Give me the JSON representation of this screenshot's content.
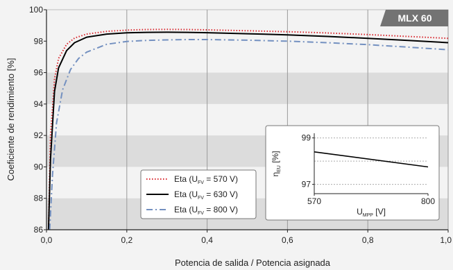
{
  "chart_data": [
    {
      "type": "line",
      "title": "MLX 60",
      "xlabel": "Potencia de salida / Potencia asignada",
      "ylabel": "Coeficiente de rendimiento [%]",
      "xlim": [
        0.0,
        1.0
      ],
      "ylim": [
        86,
        100
      ],
      "xticks": [
        0.0,
        0.2,
        0.4,
        0.6,
        0.8,
        1.0
      ],
      "xtick_labels": [
        "0,0",
        "0,2",
        "0,4",
        "0,6",
        "0,8",
        "1,0"
      ],
      "yticks": [
        86,
        88,
        90,
        92,
        94,
        96,
        98,
        100
      ],
      "ytick_labels": [
        "86",
        "88",
        "90",
        "92",
        "94",
        "96",
        "98",
        "100"
      ],
      "legend_position": "bottom-left",
      "series": [
        {
          "name": "Eta (U_FV = 570 V)",
          "legend_main": "Eta (U",
          "legend_sub": "FV",
          "legend_tail": " = 570 V)",
          "color": "#d9262d",
          "style": "dotted",
          "x": [
            0.005,
            0.01,
            0.02,
            0.03,
            0.05,
            0.07,
            0.1,
            0.15,
            0.2,
            0.25,
            0.3,
            0.35,
            0.4,
            0.5,
            0.6,
            0.7,
            0.8,
            0.9,
            1.0
          ],
          "y": [
            86.0,
            92.0,
            95.6,
            96.9,
            97.8,
            98.2,
            98.45,
            98.62,
            98.7,
            98.74,
            98.75,
            98.74,
            98.72,
            98.66,
            98.6,
            98.52,
            98.42,
            98.3,
            98.18
          ]
        },
        {
          "name": "Eta (U_FV = 630 V)",
          "legend_main": "Eta (U",
          "legend_sub": "FV",
          "legend_tail": " = 630 V)",
          "color": "#000000",
          "style": "solid",
          "x": [
            0.005,
            0.01,
            0.02,
            0.03,
            0.05,
            0.07,
            0.1,
            0.15,
            0.2,
            0.25,
            0.3,
            0.35,
            0.4,
            0.5,
            0.6,
            0.7,
            0.8,
            0.9,
            1.0
          ],
          "y": [
            86.0,
            90.5,
            94.8,
            96.3,
            97.4,
            97.9,
            98.25,
            98.45,
            98.53,
            98.56,
            98.57,
            98.56,
            98.54,
            98.47,
            98.4,
            98.3,
            98.18,
            98.05,
            97.9
          ]
        },
        {
          "name": "Eta (U_FV = 800 V)",
          "legend_main": "Eta (U",
          "legend_sub": "FV",
          "legend_tail": " = 800 V)",
          "color": "#7390c0",
          "style": "dashdot",
          "x": [
            0.008,
            0.015,
            0.025,
            0.04,
            0.06,
            0.08,
            0.1,
            0.15,
            0.2,
            0.25,
            0.3,
            0.35,
            0.4,
            0.5,
            0.6,
            0.7,
            0.8,
            0.9,
            1.0
          ],
          "y": [
            86.0,
            89.5,
            92.8,
            94.9,
            96.2,
            96.9,
            97.3,
            97.8,
            97.98,
            98.05,
            98.08,
            98.1,
            98.1,
            98.06,
            98.0,
            97.9,
            97.78,
            97.62,
            97.45
          ]
        }
      ]
    },
    {
      "type": "line",
      "xlabel_main": "U",
      "xlabel_sub": "MPP",
      "xlabel_tail": " [V]",
      "ylabel_main": "η",
      "ylabel_sub": "EU",
      "ylabel_tail": " [%]",
      "xlim": [
        570,
        800
      ],
      "ylim": [
        96.6,
        99.2
      ],
      "xticks": [
        570,
        800
      ],
      "xtick_labels": [
        "570",
        "800"
      ],
      "yticks": [
        97,
        99
      ],
      "ytick_labels": [
        "97",
        "99"
      ],
      "series": [
        {
          "color": "#000000",
          "x": [
            570,
            800
          ],
          "y": [
            98.4,
            97.75
          ]
        }
      ]
    }
  ]
}
